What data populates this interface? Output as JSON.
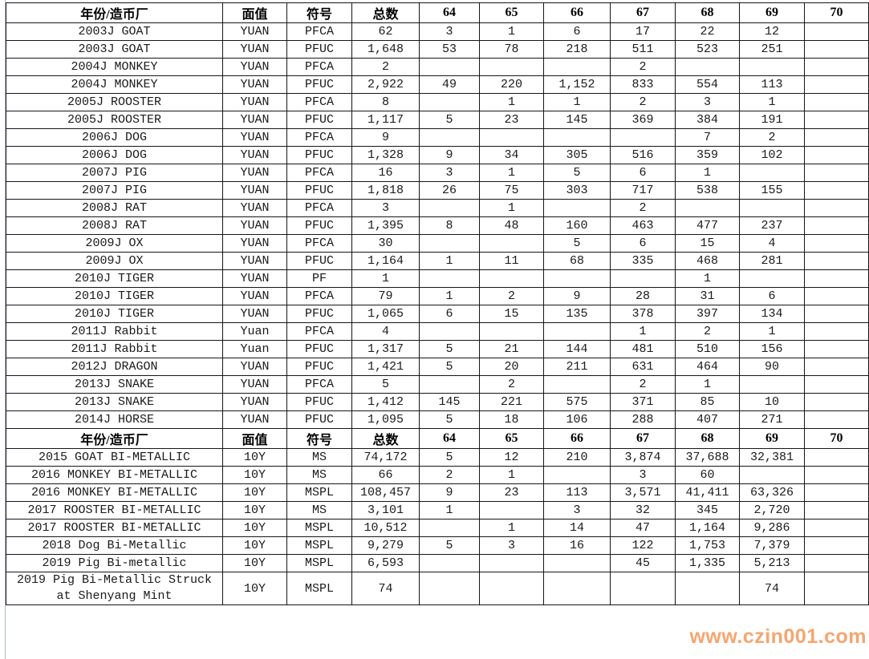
{
  "watermark": "www.czin001.com",
  "colors": {
    "watermark_orange": "#f6a56e",
    "grid_border": "#161616",
    "left_strip_blue": "#d9e2ed",
    "cell_text": "#1a1a1a",
    "background": "#ffffff"
  },
  "table": {
    "column_headers": [
      "年份/造币厂",
      "面值",
      "符号",
      "总数",
      "64",
      "65",
      "66",
      "67",
      "68",
      "69",
      "70"
    ],
    "sections": [
      {
        "rows": [
          [
            "2003J GOAT",
            "YUAN",
            "PFCA",
            "62",
            "3",
            "1",
            "6",
            "17",
            "22",
            "12",
            ""
          ],
          [
            "2003J GOAT",
            "YUAN",
            "PFUC",
            "1,648",
            "53",
            "78",
            "218",
            "511",
            "523",
            "251",
            ""
          ],
          [
            "2004J MONKEY",
            "YUAN",
            "PFCA",
            "2",
            "",
            "",
            "",
            "2",
            "",
            "",
            ""
          ],
          [
            "2004J MONKEY",
            "YUAN",
            "PFUC",
            "2,922",
            "49",
            "220",
            "1,152",
            "833",
            "554",
            "113",
            ""
          ],
          [
            "2005J ROOSTER",
            "YUAN",
            "PFCA",
            "8",
            "",
            "1",
            "1",
            "2",
            "3",
            "1",
            ""
          ],
          [
            "2005J ROOSTER",
            "YUAN",
            "PFUC",
            "1,117",
            "5",
            "23",
            "145",
            "369",
            "384",
            "191",
            ""
          ],
          [
            "2006J DOG",
            "YUAN",
            "PFCA",
            "9",
            "",
            "",
            "",
            "",
            "7",
            "2",
            ""
          ],
          [
            "2006J DOG",
            "YUAN",
            "PFUC",
            "1,328",
            "9",
            "34",
            "305",
            "516",
            "359",
            "102",
            ""
          ],
          [
            "2007J PIG",
            "YUAN",
            "PFCA",
            "16",
            "3",
            "1",
            "5",
            "6",
            "1",
            "",
            ""
          ],
          [
            "2007J PIG",
            "YUAN",
            "PFUC",
            "1,818",
            "26",
            "75",
            "303",
            "717",
            "538",
            "155",
            ""
          ],
          [
            "2008J RAT",
            "YUAN",
            "PFCA",
            "3",
            "",
            "1",
            "",
            "2",
            "",
            "",
            ""
          ],
          [
            "2008J RAT",
            "YUAN",
            "PFUC",
            "1,395",
            "8",
            "48",
            "160",
            "463",
            "477",
            "237",
            ""
          ],
          [
            "2009J OX",
            "YUAN",
            "PFCA",
            "30",
            "",
            "",
            "5",
            "6",
            "15",
            "4",
            ""
          ],
          [
            "2009J OX",
            "YUAN",
            "PFUC",
            "1,164",
            "1",
            "11",
            "68",
            "335",
            "468",
            "281",
            ""
          ],
          [
            "2010J TIGER",
            "YUAN",
            "PF",
            "1",
            "",
            "",
            "",
            "",
            "1",
            "",
            ""
          ],
          [
            "2010J TIGER",
            "YUAN",
            "PFCA",
            "79",
            "1",
            "2",
            "9",
            "28",
            "31",
            "6",
            ""
          ],
          [
            "2010J TIGER",
            "YUAN",
            "PFUC",
            "1,065",
            "6",
            "15",
            "135",
            "378",
            "397",
            "134",
            ""
          ],
          [
            "2011J Rabbit",
            "Yuan",
            "PFCA",
            "4",
            "",
            "",
            "",
            "1",
            "2",
            "1",
            ""
          ],
          [
            "2011J Rabbit",
            "Yuan",
            "PFUC",
            "1,317",
            "5",
            "21",
            "144",
            "481",
            "510",
            "156",
            ""
          ],
          [
            "2012J DRAGON",
            "YUAN",
            "PFUC",
            "1,421",
            "5",
            "20",
            "211",
            "631",
            "464",
            "90",
            ""
          ],
          [
            "2013J SNAKE",
            "YUAN",
            "PFCA",
            "5",
            "",
            "2",
            "",
            "2",
            "1",
            "",
            ""
          ],
          [
            "2013J SNAKE",
            "YUAN",
            "PFUC",
            "1,412",
            "145",
            "221",
            "575",
            "371",
            "85",
            "10",
            ""
          ],
          [
            "2014J HORSE",
            "YUAN",
            "PFUC",
            "1,095",
            "5",
            "18",
            "106",
            "288",
            "407",
            "271",
            ""
          ]
        ]
      },
      {
        "rows": [
          [
            "2015 GOAT BI-METALLIC",
            "10Y",
            "MS",
            "74,172",
            "5",
            "12",
            "210",
            "3,874",
            "37,688",
            "32,381",
            ""
          ],
          [
            "2016 MONKEY BI-METALLIC",
            "10Y",
            "MS",
            "66",
            "2",
            "1",
            "",
            "3",
            "60",
            "",
            ""
          ],
          [
            "2016 MONKEY BI-METALLIC",
            "10Y",
            "MSPL",
            "108,457",
            "9",
            "23",
            "113",
            "3,571",
            "41,411",
            "63,326",
            ""
          ],
          [
            "2017 ROOSTER BI-METALLIC",
            "10Y",
            "MS",
            "3,101",
            "1",
            "",
            "3",
            "32",
            "345",
            "2,720",
            ""
          ],
          [
            "2017 ROOSTER BI-METALLIC",
            "10Y",
            "MSPL",
            "10,512",
            "",
            "1",
            "14",
            "47",
            "1,164",
            "9,286",
            ""
          ],
          [
            "2018 Dog Bi-Metallic",
            "10Y",
            "MSPL",
            "9,279",
            "5",
            "3",
            "16",
            "122",
            "1,753",
            "7,379",
            ""
          ],
          [
            "2019 Pig Bi-metallic",
            "10Y",
            "MSPL",
            "6,593",
            "",
            "",
            "",
            "45",
            "1,335",
            "5,213",
            ""
          ],
          [
            "2019 Pig Bi-Metallic Struck at Shenyang Mint",
            "10Y",
            "MSPL",
            "74",
            "",
            "",
            "",
            "",
            "",
            "74",
            ""
          ]
        ]
      }
    ]
  }
}
